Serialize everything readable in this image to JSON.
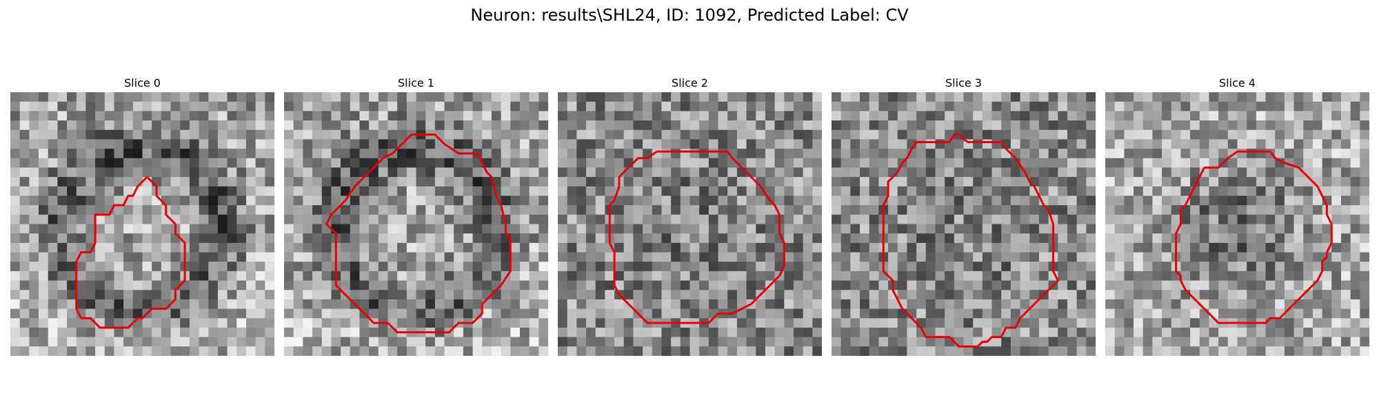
{
  "figure": {
    "title": "Neuron: results\\SHL24, ID: 1092, Predicted Label: CV",
    "contour_color": "#e8000b",
    "colormap": "gray"
  },
  "slices": [
    {
      "label": "Slice 0",
      "seed": 11,
      "darkness": "ring-dark"
    },
    {
      "label": "Slice 1",
      "seed": 23,
      "darkness": "ring-dark"
    },
    {
      "label": "Slice 2",
      "seed": 37,
      "darkness": "noise"
    },
    {
      "label": "Slice 3",
      "seed": 41,
      "darkness": "noise"
    },
    {
      "label": "Slice 4",
      "seed": 53,
      "darkness": "center-dark"
    }
  ]
}
